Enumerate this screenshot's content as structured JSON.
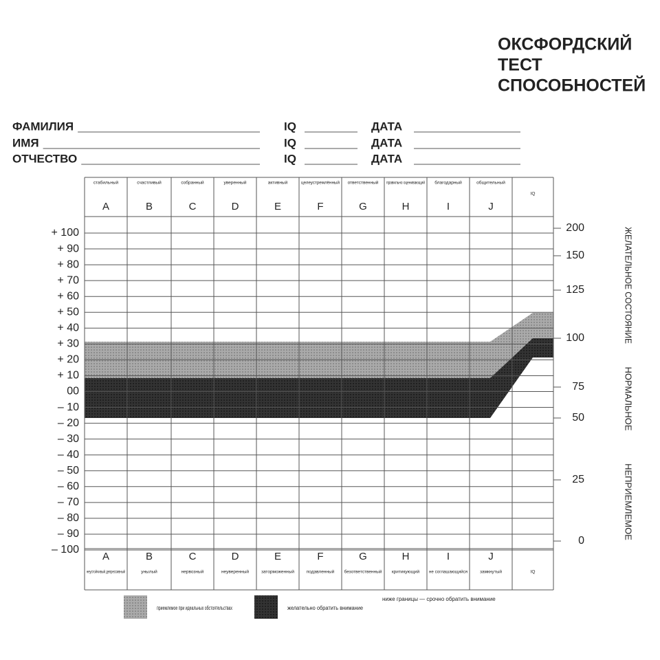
{
  "title": [
    "ОКСФОРДСКИЙ",
    "ТЕСТ",
    "СПОСОБНОСТЕЙ"
  ],
  "fields": [
    {
      "label": "ФАМИЛИЯ",
      "iq": "IQ",
      "date": "ДАТА"
    },
    {
      "label": "ИМЯ",
      "iq": "IQ",
      "date": "ДАТА"
    },
    {
      "label": "ОТЧЕСТВО",
      "iq": "IQ",
      "date": "ДАТА"
    }
  ],
  "columns": {
    "letters": [
      "A",
      "B",
      "C",
      "D",
      "E",
      "F",
      "G",
      "H",
      "I",
      "J"
    ],
    "top": [
      "стабильный",
      "счастливый",
      "собранный",
      "уверенный",
      "активный",
      "целеустремлённый",
      "ответственный",
      "правильно оценивающий",
      "благодарный",
      "общительный",
      "IQ"
    ],
    "bottom": [
      "неустойчивый депрессивный",
      "унылый",
      "нервозный",
      "неуверенный",
      "заторможенный",
      "подавленный",
      "безответственный",
      "критикующий",
      "не соглашающийся",
      "замкнутый",
      "IQ"
    ]
  },
  "left_scale": [
    "+ 100",
    "+ 90",
    "+ 80",
    "+ 70",
    "+ 60",
    "+ 50",
    "+ 40",
    "+ 30",
    "+ 20",
    "+ 10",
    "00",
    "– 10",
    "– 20",
    "– 30",
    "– 40",
    "– 50",
    "– 60",
    "– 70",
    "– 80",
    "– 90",
    "– 100"
  ],
  "right_scale": [
    "200",
    "150",
    "125",
    "100",
    "75",
    "50",
    "25",
    "0"
  ],
  "zones": [
    "ЖЕЛАТЕЛЬНОЕ СОСТОЯНИЕ",
    "НОРМАЛЬНОЕ",
    "НЕПРИЕМЛЕМОЕ"
  ],
  "legend": [
    "приемлемое при идеальных обстоятельствах",
    "желательно обратить внимание",
    "ниже границы — срочно обратить внимание"
  ]
}
